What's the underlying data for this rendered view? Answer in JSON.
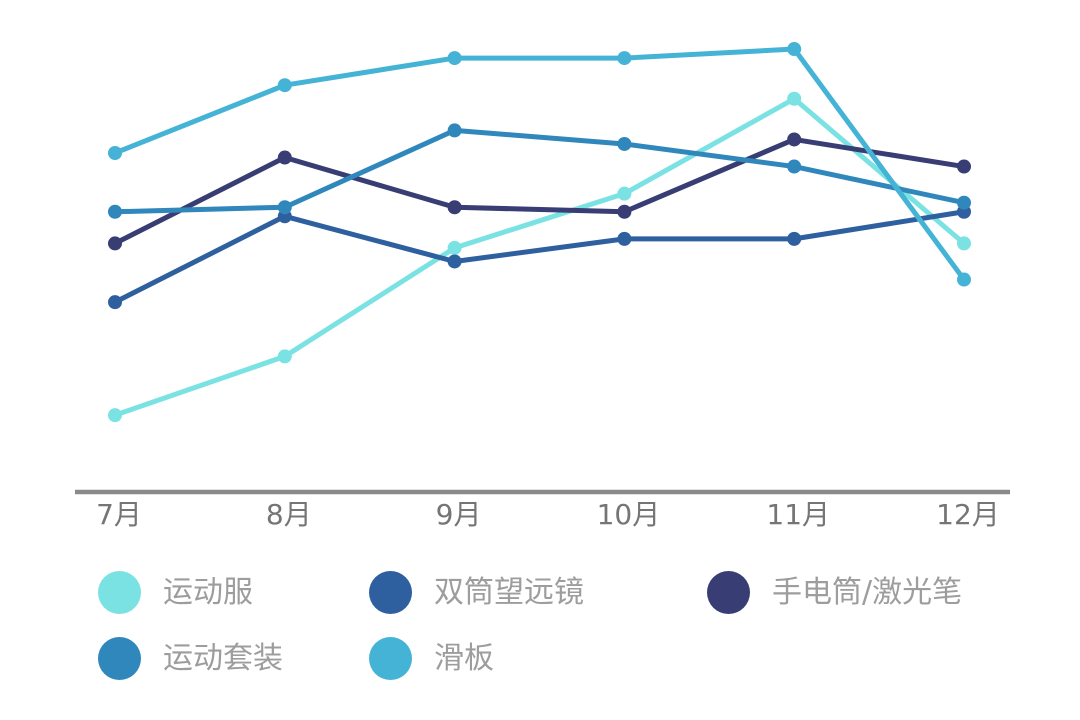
{
  "chart_data": {
    "type": "line",
    "title": "",
    "xlabel": "",
    "ylabel": "",
    "categories": [
      "7月",
      "8月",
      "9月",
      "10月",
      "11月",
      "12月"
    ],
    "ylim": [
      0,
      110
    ],
    "grid": false,
    "y_axis_visible": false,
    "legend_position": "bottom",
    "series": [
      {
        "key": "sportswear",
        "name": "运动服",
        "color": "#7BE2E4",
        "values": [
          17,
          30,
          54,
          66,
          87,
          55
        ]
      },
      {
        "key": "binoculars",
        "name": "双筒望远镜",
        "color": "#2E609F",
        "values": [
          42,
          61,
          51,
          56,
          56,
          62
        ]
      },
      {
        "key": "flashlight-laser-pen",
        "name": "手电筒/激光笔",
        "color": "#383D73",
        "values": [
          55,
          74,
          63,
          62,
          78,
          72
        ]
      },
      {
        "key": "sports-suit",
        "name": "运动套装",
        "color": "#2F87BC",
        "values": [
          62,
          63,
          80,
          77,
          72,
          64
        ]
      },
      {
        "key": "skateboard",
        "name": "滑板",
        "color": "#44B3D6",
        "values": [
          75,
          90,
          96,
          96,
          98,
          47
        ]
      }
    ],
    "axis_color": "#8A8A8A",
    "tick_label_color": "#757575",
    "legend_text_color": "#9D9D9D"
  }
}
